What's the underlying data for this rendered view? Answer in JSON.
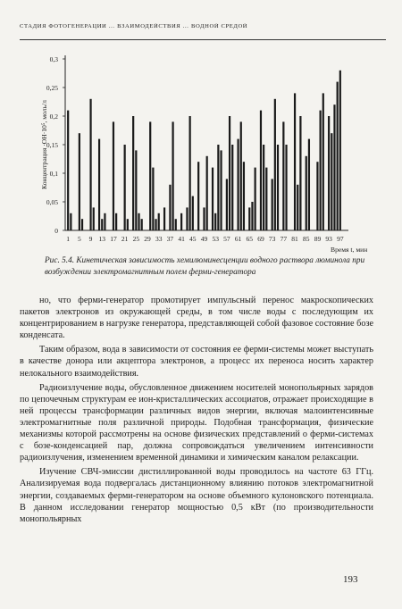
{
  "header": {
    "running_title": "Стадия фотогенерации … взаимодействия … водной средой"
  },
  "chart_data": {
    "type": "bar",
    "ylabel": "Концентрация ·ОН·10⁵, моль/л",
    "xlabel": "Время t, мин",
    "ylim": [
      0,
      0.3
    ],
    "yticks": [
      0,
      0.05,
      0.1,
      0.15,
      0.2,
      0.25,
      0.3
    ],
    "ytick_labels": [
      "0",
      "0,05",
      "0,1",
      "0,15",
      "0,2",
      "0,25",
      "0,3"
    ],
    "xticks": [
      1,
      5,
      9,
      13,
      17,
      21,
      25,
      29,
      33,
      37,
      41,
      45,
      49,
      53,
      57,
      61,
      65,
      69,
      73,
      77,
      81,
      85,
      89,
      93,
      97
    ],
    "x": [
      1,
      2,
      5,
      6,
      9,
      10,
      12,
      13,
      14,
      17,
      18,
      21,
      22,
      24,
      25,
      26,
      27,
      30,
      31,
      32,
      33,
      35,
      37,
      38,
      39,
      41,
      43,
      44,
      45,
      47,
      49,
      50,
      52,
      53,
      54,
      55,
      57,
      58,
      59,
      61,
      62,
      63,
      65,
      66,
      67,
      69,
      70,
      71,
      73,
      74,
      75,
      77,
      78,
      81,
      82,
      83,
      85,
      86,
      89,
      90,
      91,
      93,
      94,
      95,
      96,
      97
    ],
    "values": [
      0.21,
      0.03,
      0.17,
      0.02,
      0.23,
      0.04,
      0.16,
      0.02,
      0.03,
      0.19,
      0.03,
      0.15,
      0.02,
      0.2,
      0.14,
      0.03,
      0.02,
      0.19,
      0.11,
      0.02,
      0.03,
      0.04,
      0.08,
      0.19,
      0.02,
      0.03,
      0.04,
      0.2,
      0.06,
      0.12,
      0.04,
      0.13,
      0.11,
      0.03,
      0.15,
      0.14,
      0.09,
      0.2,
      0.15,
      0.16,
      0.19,
      0.12,
      0.04,
      0.05,
      0.11,
      0.21,
      0.15,
      0.11,
      0.09,
      0.23,
      0.15,
      0.19,
      0.15,
      0.24,
      0.08,
      0.2,
      0.13,
      0.16,
      0.12,
      0.21,
      0.24,
      0.2,
      0.17,
      0.22,
      0.26,
      0.28
    ]
  },
  "caption": "Рис. 5.4. Кинетическая зависимость хемилюминесценции водного раствора люминола при возбуждении электромагнитным полем ферми-генератора",
  "paragraphs": [
    "но, что ферми-генератор промотирует импульсный перенос макроскопических пакетов электронов из окружающей среды, в том числе воды с последующим их концентрированием в нагрузке генератора, представляющей собой фазовое состояние бозе конденсата.",
    "Таким образом, вода в зависимости от состояния ее ферми-системы может выступать в качестве донора или акцептора электронов, а процесс их переноса носить характер нелокального взаимодействия.",
    "Радиоизлучение воды, обусловленное движением носителей монопольярных зарядов по цепочечным структурам ее ион-кристаллических ассоциатов, отражает происходящие в ней процессы трансформации различных видов энергии, включая малоинтенсивные электромагнитные поля различной природы. Подобная трансформация, физические механизмы которой рассмотрены на основе физических представлений о ферми-системах с бозе-конденсацией пар, должна сопровождаться увеличением интенсивности радиоизлучения, изменением временной динамики и химическим каналом релаксации.",
    "Изучение СВЧ-эмиссии дистиллированной воды проводилось на частоте 63 ГГц. Анализируемая вода подвергалась дистанционному влиянию потоков электромагнитной энергии, создаваемых ферми-генератором на основе объемного кулоновского потенциала. В данном исследовании генератор мощностью 0,5 кВт (по производительности монопольярных"
  ],
  "page_number": "193"
}
